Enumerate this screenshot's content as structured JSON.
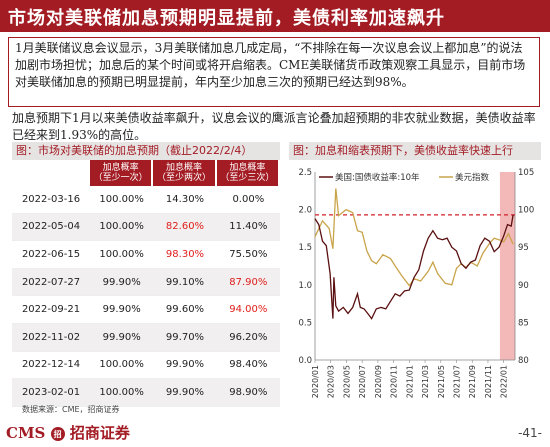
{
  "header": {
    "title": "市场对美联储加息预期明显提前，美债利率加速飙升"
  },
  "summary": {
    "p1": "1月美联储议息会议显示，3月美联储加息几成定局，“不排除在每一次议息会议上都加息”的说法加剧市场担忧；加息后的某个时间或将开启缩表。CME美联储货币政策观察工具显示，目前市场对美联储加息的预期已明显提前，年内至少加息三次的预期已经达到98%。",
    "p2": "加息预期下1月以来美债收益率飙升，议息会议的鹰派言论叠加超预期的非农就业数据，美债收益率已经来到1.93%的高位。"
  },
  "table": {
    "title": "图：市场对美联储的加息预期（截止2022/2/4）",
    "headers": [
      "",
      "加息概率\n（至少一次）",
      "加息概率\n（至少两次）",
      "加息概率\n（至少三次）"
    ],
    "rows": [
      {
        "date": "2022-03-16",
        "v1": "100.00%",
        "v2": "14.30%",
        "v3": "0.00%",
        "red": ""
      },
      {
        "date": "2022-05-04",
        "v1": "100.00%",
        "v2": "82.60%",
        "v3": "11.40%",
        "red": "v2"
      },
      {
        "date": "2022-06-15",
        "v1": "100.00%",
        "v2": "98.30%",
        "v3": "75.50%",
        "red": "v2"
      },
      {
        "date": "2022-07-27",
        "v1": "99.90%",
        "v2": "99.10%",
        "v3": "87.90%",
        "red": "v3"
      },
      {
        "date": "2022-09-21",
        "v1": "99.90%",
        "v2": "99.60%",
        "v3": "94.00%",
        "red": "v3"
      },
      {
        "date": "2022-11-02",
        "v1": "99.90%",
        "v2": "99.70%",
        "v3": "96.20%",
        "red": ""
      },
      {
        "date": "2022-12-14",
        "v1": "100.00%",
        "v2": "99.90%",
        "v3": "98.40%",
        "red": ""
      },
      {
        "date": "2023-02-01",
        "v1": "100.00%",
        "v2": "99.90%",
        "v3": "98.90%",
        "red": ""
      }
    ]
  },
  "chart_title": "图：加息和缩表预期下，美债收益率快速上行",
  "chart_data": {
    "type": "line",
    "title": "",
    "series": [
      {
        "name": "美国:国债收益率:10年",
        "color": "#5a1010",
        "axis": "left"
      },
      {
        "name": "美元指数",
        "color": "#c9a44a",
        "axis": "right"
      }
    ],
    "x_ticks": [
      "2020/01",
      "2020/03",
      "2020/05",
      "2020/07",
      "2020/09",
      "2020/11",
      "2021/01",
      "2021/03",
      "2021/05",
      "2021/07",
      "2021/09",
      "2021/11",
      "2022/01"
    ],
    "left_axis": {
      "ylim": [
        0,
        2.5
      ],
      "ticks": [
        "0.0",
        "0.5",
        "1.0",
        "1.5",
        "2.0",
        "2.5"
      ]
    },
    "right_axis": {
      "ylim": [
        80,
        105
      ],
      "ticks": [
        "80",
        "85",
        "90",
        "95",
        "100",
        "105"
      ]
    },
    "x_range": [
      2020.0,
      2022.12
    ],
    "reference_line": {
      "value": 1.93,
      "axis": "left",
      "color": "#d0202a"
    },
    "highlight": {
      "x_from": 2021.96,
      "x_to": 2022.12,
      "color": "#f3b8b8"
    },
    "yield_points": [
      [
        2020.0,
        1.88
      ],
      [
        2020.04,
        1.8
      ],
      [
        2020.08,
        1.58
      ],
      [
        2020.12,
        1.52
      ],
      [
        2020.16,
        1.15
      ],
      [
        2020.19,
        0.55
      ],
      [
        2020.2,
        1.1
      ],
      [
        2020.22,
        0.72
      ],
      [
        2020.25,
        0.65
      ],
      [
        2020.3,
        0.7
      ],
      [
        2020.35,
        0.62
      ],
      [
        2020.4,
        0.7
      ],
      [
        2020.45,
        0.88
      ],
      [
        2020.48,
        0.7
      ],
      [
        2020.52,
        0.68
      ],
      [
        2020.57,
        0.6
      ],
      [
        2020.6,
        0.55
      ],
      [
        2020.65,
        0.68
      ],
      [
        2020.7,
        0.7
      ],
      [
        2020.75,
        0.68
      ],
      [
        2020.8,
        0.78
      ],
      [
        2020.85,
        0.88
      ],
      [
        2020.9,
        0.85
      ],
      [
        2020.95,
        0.92
      ],
      [
        2021.0,
        0.93
      ],
      [
        2021.05,
        1.1
      ],
      [
        2021.1,
        1.2
      ],
      [
        2021.15,
        1.45
      ],
      [
        2021.2,
        1.62
      ],
      [
        2021.25,
        1.72
      ],
      [
        2021.3,
        1.62
      ],
      [
        2021.35,
        1.6
      ],
      [
        2021.4,
        1.62
      ],
      [
        2021.45,
        1.5
      ],
      [
        2021.5,
        1.45
      ],
      [
        2021.55,
        1.28
      ],
      [
        2021.6,
        1.22
      ],
      [
        2021.65,
        1.3
      ],
      [
        2021.7,
        1.33
      ],
      [
        2021.75,
        1.52
      ],
      [
        2021.8,
        1.62
      ],
      [
        2021.85,
        1.58
      ],
      [
        2021.9,
        1.44
      ],
      [
        2021.95,
        1.5
      ],
      [
        2022.0,
        1.65
      ],
      [
        2022.04,
        1.8
      ],
      [
        2022.08,
        1.78
      ],
      [
        2022.1,
        1.93
      ]
    ],
    "dxy_points": [
      [
        2020.0,
        96.4
      ],
      [
        2020.08,
        98.5
      ],
      [
        2020.15,
        97.5
      ],
      [
        2020.19,
        94.8
      ],
      [
        2020.22,
        102.8
      ],
      [
        2020.25,
        99.2
      ],
      [
        2020.33,
        100.0
      ],
      [
        2020.4,
        99.6
      ],
      [
        2020.45,
        97.2
      ],
      [
        2020.5,
        97.0
      ],
      [
        2020.55,
        94.5
      ],
      [
        2020.6,
        93.2
      ],
      [
        2020.65,
        92.8
      ],
      [
        2020.72,
        94.0
      ],
      [
        2020.8,
        93.5
      ],
      [
        2020.85,
        92.5
      ],
      [
        2020.92,
        91.2
      ],
      [
        2021.0,
        89.9
      ],
      [
        2021.05,
        90.8
      ],
      [
        2021.12,
        90.5
      ],
      [
        2021.2,
        91.8
      ],
      [
        2021.25,
        93.0
      ],
      [
        2021.3,
        91.5
      ],
      [
        2021.38,
        90.2
      ],
      [
        2021.45,
        90.0
      ],
      [
        2021.5,
        92.2
      ],
      [
        2021.55,
        92.8
      ],
      [
        2021.6,
        92.3
      ],
      [
        2021.65,
        93.0
      ],
      [
        2021.72,
        92.5
      ],
      [
        2021.78,
        94.2
      ],
      [
        2021.85,
        95.5
      ],
      [
        2021.9,
        96.2
      ],
      [
        2021.95,
        96.0
      ],
      [
        2022.0,
        95.7
      ],
      [
        2022.05,
        96.8
      ],
      [
        2022.1,
        95.4
      ]
    ]
  },
  "footer": {
    "source": "数据来源：CME，招商证券",
    "logo_text": "CMS",
    "logo_cn": "招商证券",
    "logo_mark": "招",
    "page": "-41-"
  }
}
